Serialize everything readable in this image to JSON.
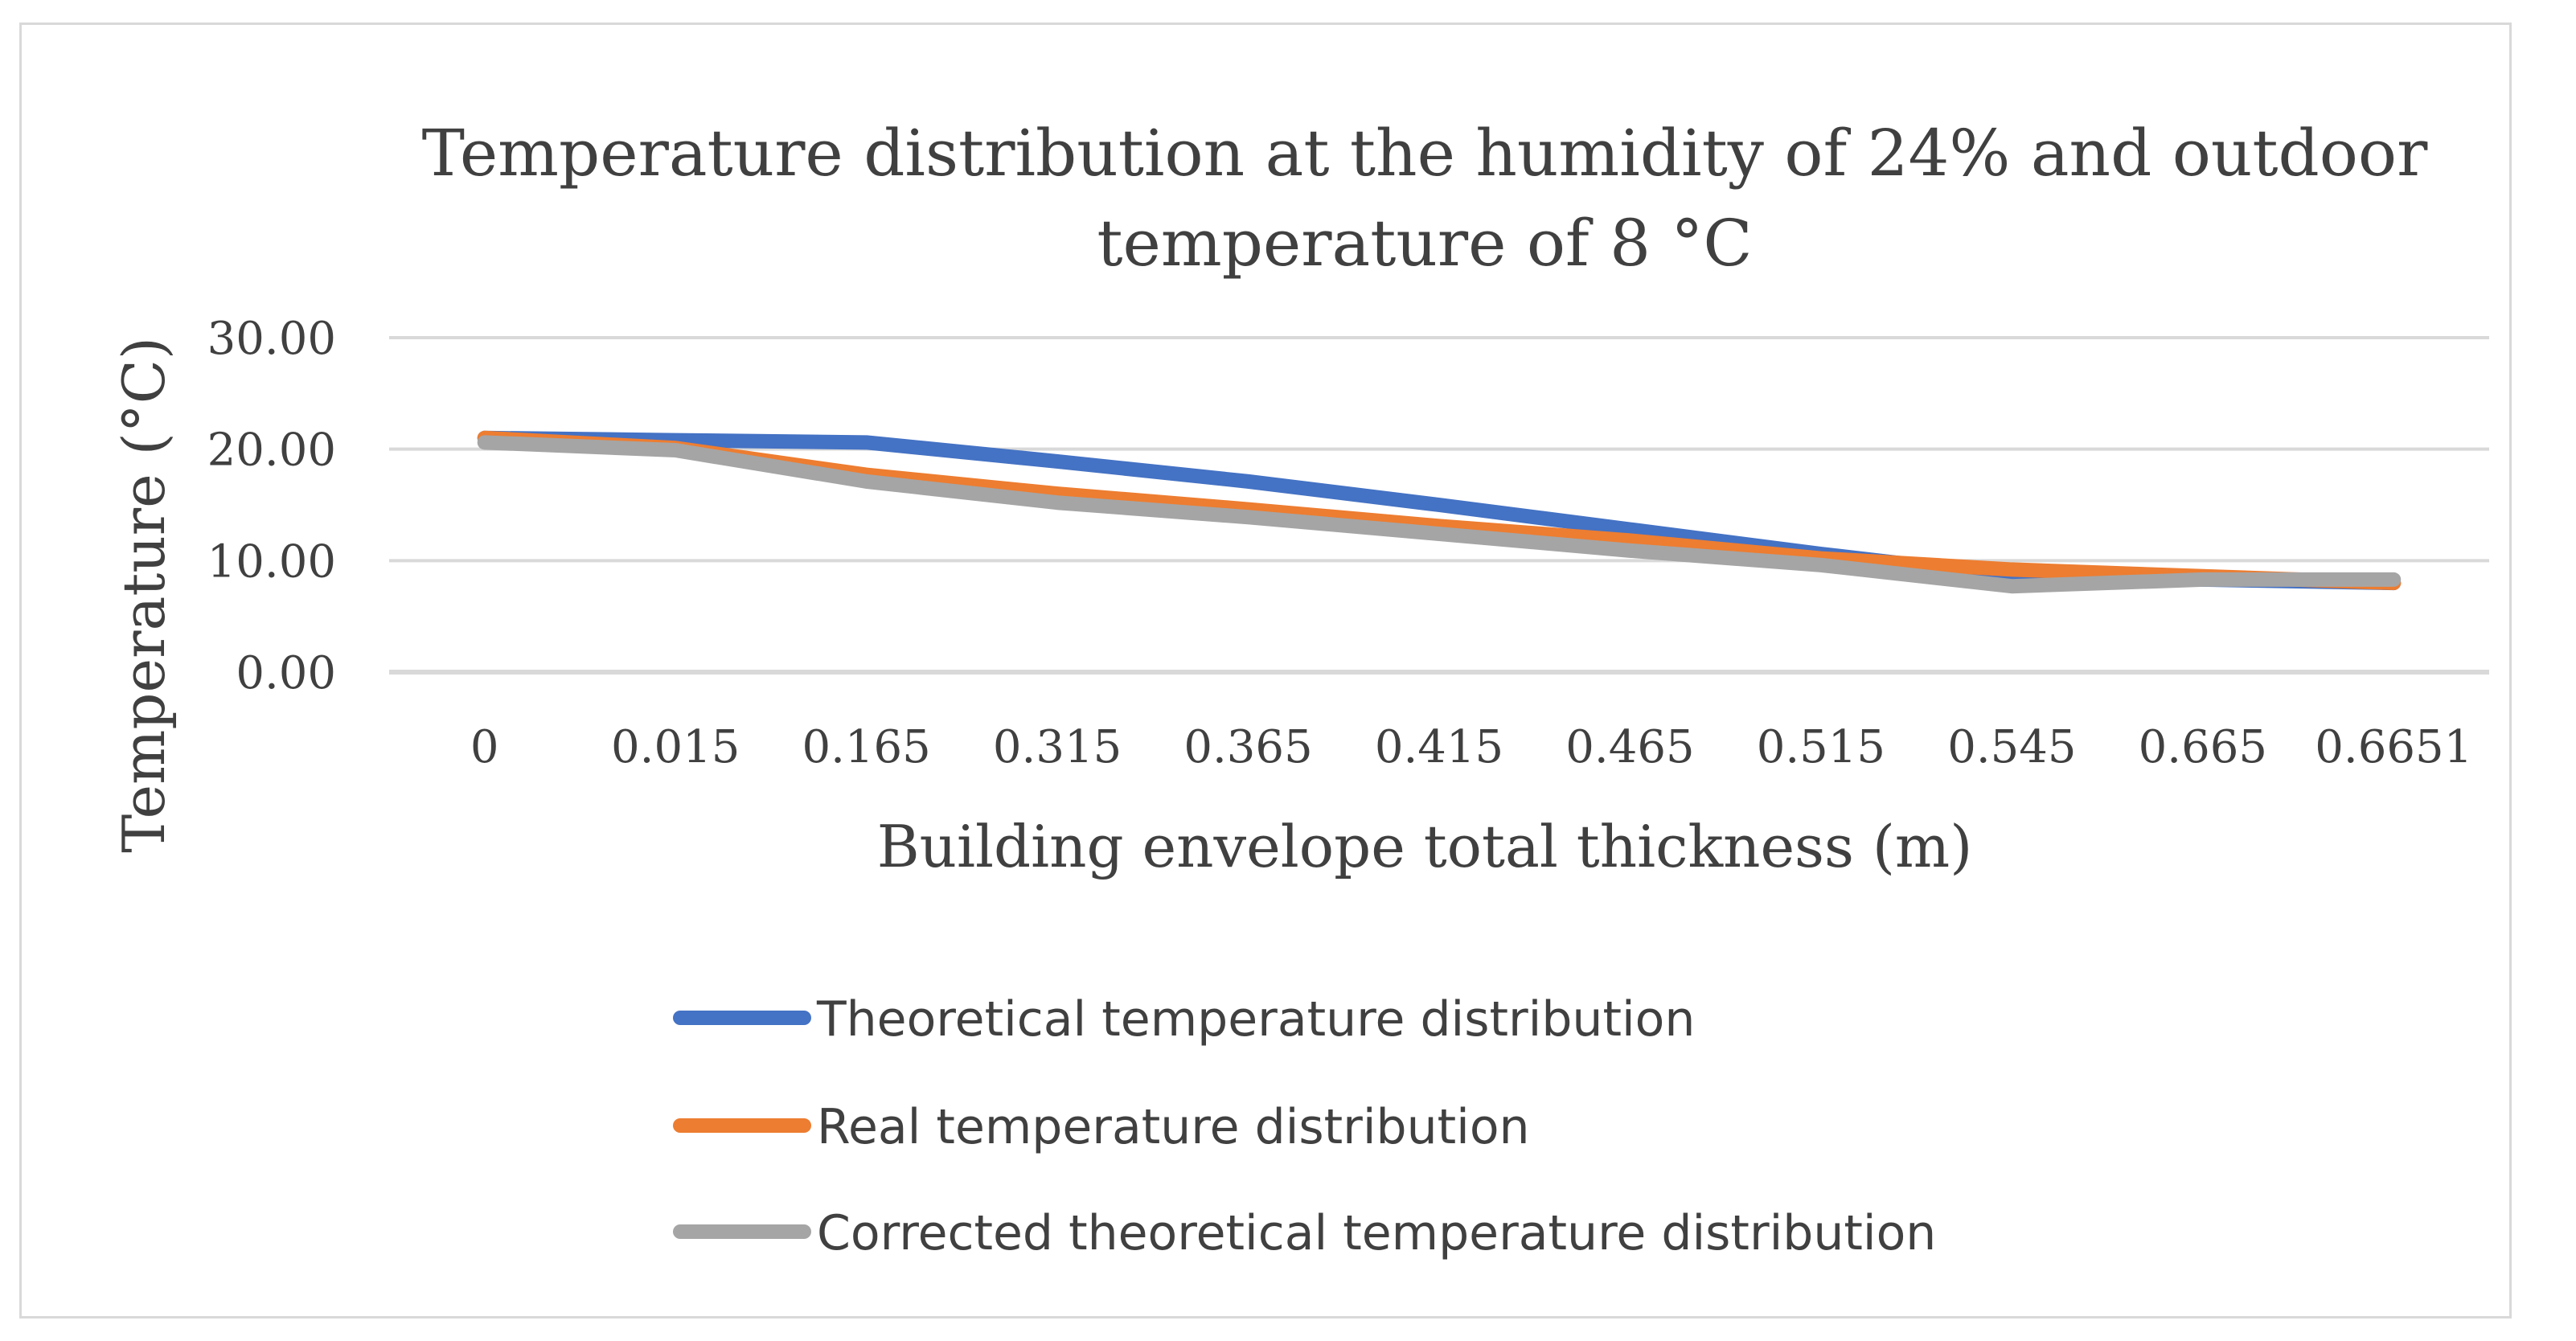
{
  "chart_data": {
    "type": "line",
    "title": "Temperature distribution at the humidity of 24% and outdoor temperature of 8 °C",
    "title_lines": [
      "Temperature distribution at the humidity of 24% and outdoor",
      "temperature of 8 °C"
    ],
    "xlabel": "Building envelope total thickness (m)",
    "ylabel": "Temperature (°C)",
    "categories": [
      "0",
      "0.015",
      "0.165",
      "0.315",
      "0.365",
      "0.415",
      "0.465",
      "0.515",
      "0.545",
      "0.665",
      "0.6651"
    ],
    "ylim": [
      0,
      30
    ],
    "yticks": [
      "0.00",
      "10.00",
      "20.00",
      "30.00"
    ],
    "ytick_values": [
      0,
      10,
      20,
      30
    ],
    "grid": true,
    "legend_position": "bottom",
    "series": [
      {
        "name": "Theoretical temperature distribution",
        "color": "#4472c4",
        "values": [
          21.0,
          20.8,
          20.6,
          18.9,
          17.1,
          15.0,
          12.8,
          10.6,
          8.6,
          8.3,
          8.0
        ]
      },
      {
        "name": "Real temperature distribution",
        "color": "#ed7d31",
        "values": [
          21.0,
          20.1,
          17.7,
          16.0,
          14.6,
          13.1,
          11.8,
          10.2,
          9.2,
          8.6,
          8.0
        ]
      },
      {
        "name": "Corrected theoretical temperature distribution",
        "color": "#a5a5a5",
        "values": [
          20.6,
          19.9,
          17.1,
          15.2,
          13.9,
          12.4,
          10.9,
          9.6,
          7.7,
          8.3,
          8.3
        ]
      }
    ]
  }
}
